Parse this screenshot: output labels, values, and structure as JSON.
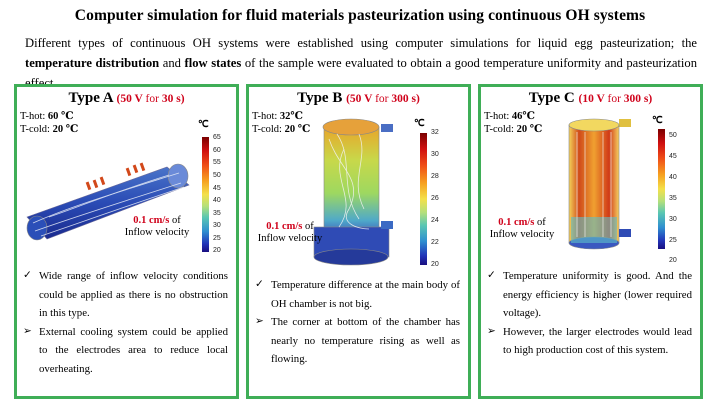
{
  "title": "Computer simulation for fluid materials pasteurization using continuous OH systems",
  "intro": {
    "part1": "Different types of continuous OH systems were established using computer simulations for liquid egg pasteurization; the ",
    "bold1": "temperature distribution",
    "part2": " and ",
    "bold2": "flow states",
    "part3": " of the sample were evaluated to obtain a good temperature uniformity and pasteurization effect."
  },
  "panels": [
    {
      "type_label": "Type A",
      "cond_open": "(",
      "voltage": "50 V",
      "for_word": "for",
      "time": "30 s",
      "cond_close": ")",
      "t_hot_label": "T-hot:",
      "t_hot": "60 ℃",
      "t_cold_label": "T-cold:",
      "t_cold": "20 ℃",
      "unit": "℃",
      "ticks": [
        "65",
        "60",
        "55",
        "50",
        "45",
        "40",
        "35",
        "30",
        "25",
        "20"
      ],
      "velocity_value": "0.1 cm/s",
      "velocity_suffix": "of",
      "velocity_label": "Inflow velocity",
      "bullets": [
        {
          "mark": "✓",
          "text": "Wide range of inflow velocity conditions could be applied as there is no obstruction in this type."
        },
        {
          "mark": "➢",
          "text": "External cooling system could be applied to the electrodes area to reduce local overheating."
        }
      ]
    },
    {
      "type_label": "Type B",
      "cond_open": "(",
      "voltage": "50 V",
      "for_word": "for",
      "time": "300 s",
      "cond_close": ")",
      "t_hot_label": "T-hot:",
      "t_hot": "32℃",
      "t_cold_label": "T-cold:",
      "t_cold": "20 ℃",
      "unit": "℃",
      "ticks": [
        "32",
        "30",
        "28",
        "26",
        "24",
        "22",
        "20"
      ],
      "velocity_value": "0.1 cm/s",
      "velocity_suffix": "of",
      "velocity_label": "Inflow velocity",
      "bullets": [
        {
          "mark": "✓",
          "text": "Temperature difference at the main body of OH chamber is not big."
        },
        {
          "mark": "➢",
          "text": "The corner at bottom of the chamber has nearly no temperature rising as well as flowing."
        }
      ]
    },
    {
      "type_label": "Type C",
      "cond_open": "(",
      "voltage": "10 V",
      "for_word": "for",
      "time": "300 s",
      "cond_close": ")",
      "t_hot_label": "T-hot:",
      "t_hot": "46℃",
      "t_cold_label": "T-cold:",
      "t_cold": "20 ℃",
      "unit": "℃",
      "ticks": [
        "50",
        "45",
        "40",
        "35",
        "30",
        "25",
        "20"
      ],
      "velocity_value": "0.1 cm/s",
      "velocity_suffix": "of",
      "velocity_label": "Inflow velocity",
      "bullets": [
        {
          "mark": "✓",
          "text": "Temperature uniformity is good. And the energy efficiency is higher (lower required voltage)."
        },
        {
          "mark": "➢",
          "text": "However, the larger electrodes would lead to high production cost of this system."
        }
      ]
    }
  ]
}
